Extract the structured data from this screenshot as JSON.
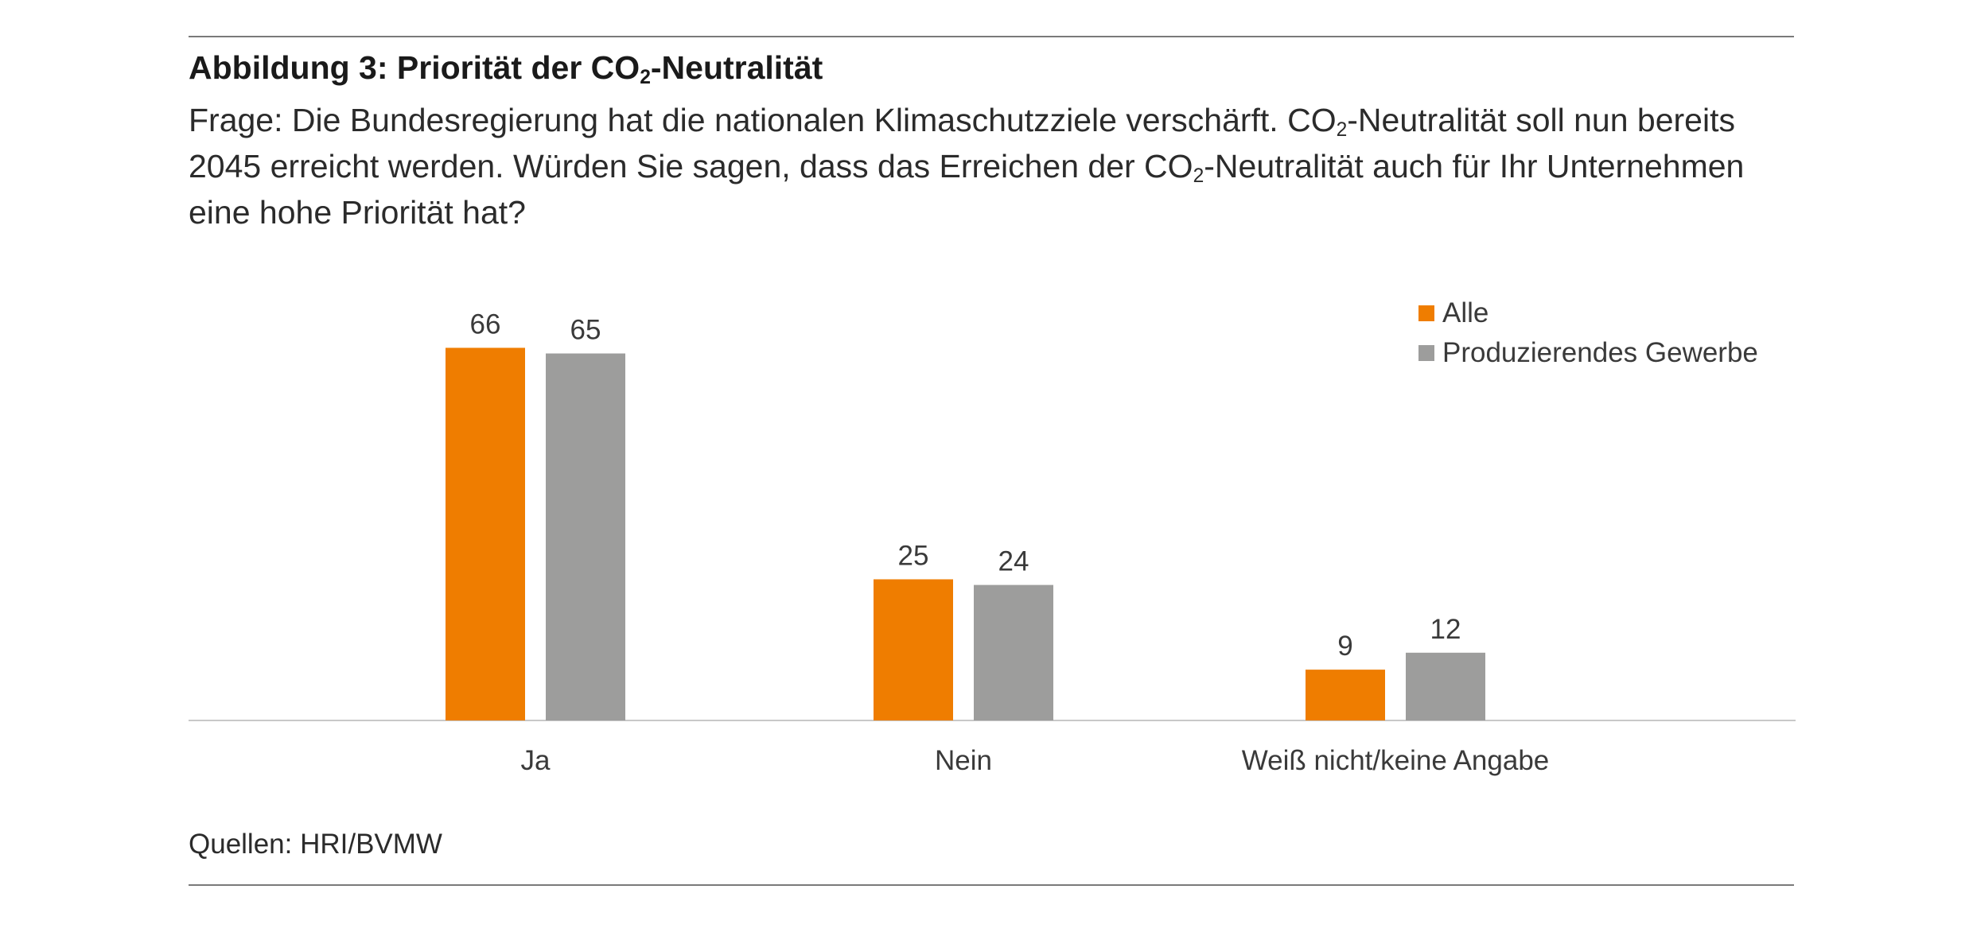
{
  "figure": {
    "title_prefix": "Abbildung 3: Priorität der CO",
    "title_sub": "2",
    "title_suffix": "-Neutralität",
    "question": [
      {
        "t": "Frage: Die Bundesregierung hat die nationalen Klimaschutzziele verschärft. CO"
      },
      {
        "sub": "2"
      },
      {
        "t": "-Neutralität soll nun bereits 2045 erreicht werden. Würden Sie sagen, dass das Erreichen der CO"
      },
      {
        "sub": "2"
      },
      {
        "t": "-Neutralität auch für Ihr Unternehmen eine hohe Priorität hat?"
      }
    ],
    "source": "Quellen: HRI/BVMW"
  },
  "colors": {
    "alle": "#ef7d00",
    "produzierend": "#9d9d9c",
    "axis": "#c8c8c8"
  },
  "chart_data": {
    "type": "bar",
    "categories": [
      "Ja",
      "Nein",
      "Weiß nicht/keine Angabe"
    ],
    "series": [
      {
        "name": "Alle",
        "values": [
          66,
          25,
          9
        ]
      },
      {
        "name": "Produzierendes Gewerbe",
        "values": [
          65,
          24,
          12
        ]
      }
    ],
    "ylim": [
      0,
      70
    ],
    "legend_position": "top-right",
    "grid": false,
    "data_labels": true
  }
}
